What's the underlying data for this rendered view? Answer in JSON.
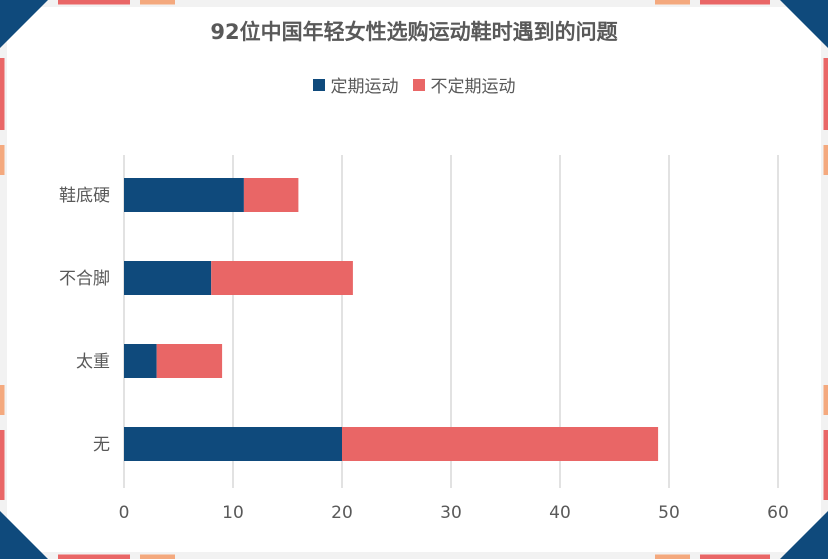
{
  "chart_data": {
    "type": "bar",
    "orientation": "horizontal",
    "stacked": true,
    "title": "92位中国年轻女性选购运动鞋时遇到的问题",
    "categories": [
      "鞋底硬",
      "不合脚",
      "太重",
      "无"
    ],
    "series": [
      {
        "name": "定期运动",
        "color": "#0f4a7c",
        "values": [
          11,
          8,
          3,
          20
        ]
      },
      {
        "name": "不定期运动",
        "color": "#e96666",
        "values": [
          5,
          13,
          6,
          29
        ]
      }
    ],
    "xlim": [
      0,
      60
    ],
    "xticks": [
      0,
      10,
      20,
      30,
      40,
      50,
      60
    ],
    "grid": true,
    "legend_position": "top"
  },
  "decor": {
    "corner_color": "#0f4a7c",
    "accent_color": "#e96666",
    "accent_light": "#f4a97e",
    "border_color": "#f2f2f2",
    "grid_color": "#d9d9d9"
  }
}
